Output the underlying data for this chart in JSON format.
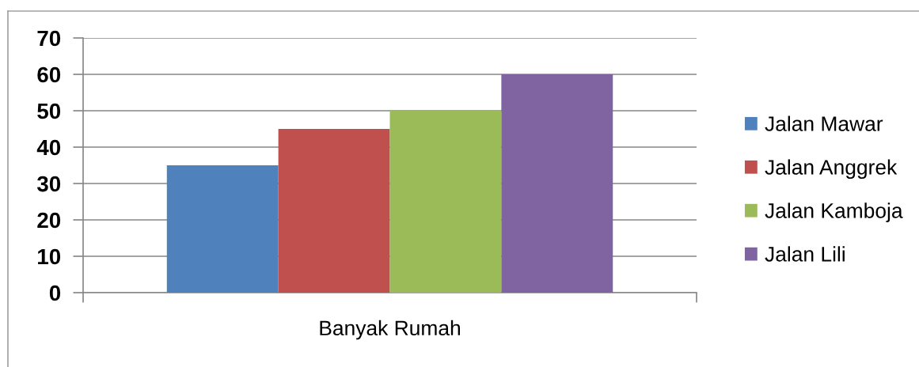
{
  "chart_data": {
    "type": "bar",
    "categories": [
      "Banyak Rumah"
    ],
    "series": [
      {
        "name": "Jalan Mawar",
        "color": "#4f81bd",
        "values": [
          35
        ]
      },
      {
        "name": "Jalan Anggrek",
        "color": "#c0504d",
        "values": [
          45
        ]
      },
      {
        "name": "Jalan Kamboja",
        "color": "#9bbb59",
        "values": [
          50
        ]
      },
      {
        "name": "Jalan Lili",
        "color": "#8064a2",
        "values": [
          60
        ]
      }
    ],
    "ylim": [
      0,
      70
    ],
    "yticks": [
      0,
      10,
      20,
      30,
      40,
      50,
      60,
      70
    ],
    "grid": "y",
    "legend": "right"
  }
}
